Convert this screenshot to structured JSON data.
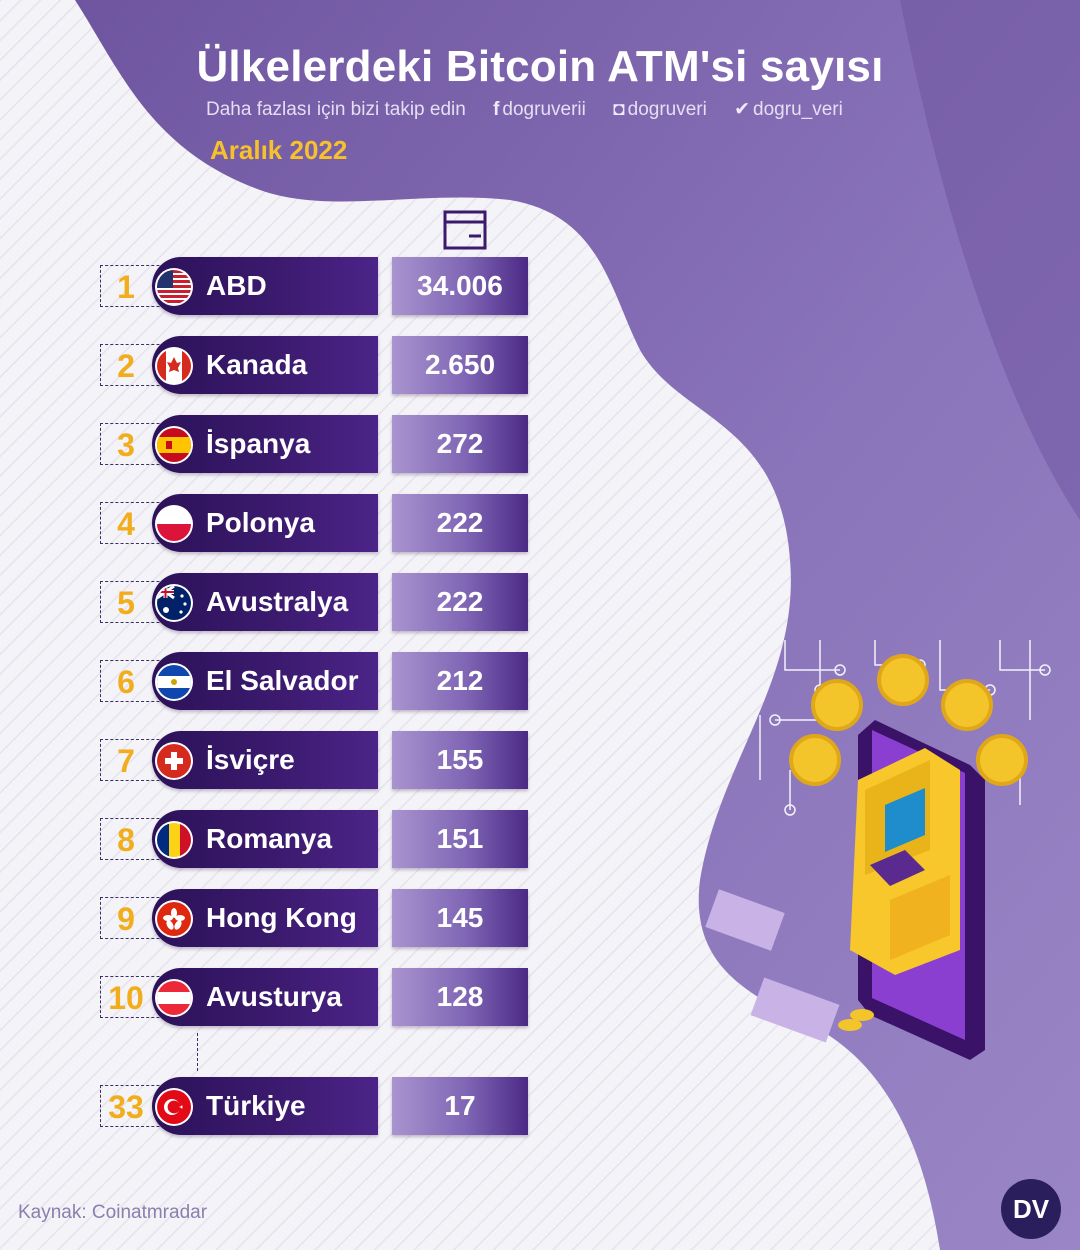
{
  "header": {
    "title": "Ülkelerdeki Bitcoin ATM'si sayısı",
    "follow_text": "Daha fazlası için bizi takip edin",
    "facebook": "dogruverii",
    "instagram": "dogruveri",
    "twitter": "dogru_veri",
    "date": "Aralık 2022"
  },
  "icons": {
    "facebook": "facebook-icon",
    "instagram": "instagram-icon",
    "twitter": "twitter-icon",
    "column": "atm-icon",
    "logo": "dv-logo"
  },
  "colors": {
    "background_purple": "#7c64aa",
    "name_bar": "#3b1a6e",
    "rank": "#f1ad1c",
    "date": "#f6c12a"
  },
  "chart_data": {
    "type": "table",
    "title": "Ülkelerdeki Bitcoin ATM'si sayısı",
    "subtitle": "Aralık 2022",
    "rows": [
      {
        "rank": "1",
        "country": "ABD",
        "value": "34.006",
        "number": 34006,
        "flag": "us"
      },
      {
        "rank": "2",
        "country": "Kanada",
        "value": "2.650",
        "number": 2650,
        "flag": "ca"
      },
      {
        "rank": "3",
        "country": "İspanya",
        "value": "272",
        "number": 272,
        "flag": "es"
      },
      {
        "rank": "4",
        "country": "Polonya",
        "value": "222",
        "number": 222,
        "flag": "pl"
      },
      {
        "rank": "5",
        "country": "Avustralya",
        "value": "222",
        "number": 222,
        "flag": "au"
      },
      {
        "rank": "6",
        "country": "El Salvador",
        "value": "212",
        "number": 212,
        "flag": "sv"
      },
      {
        "rank": "7",
        "country": "İsviçre",
        "value": "155",
        "number": 155,
        "flag": "ch"
      },
      {
        "rank": "8",
        "country": "Romanya",
        "value": "151",
        "number": 151,
        "flag": "ro"
      },
      {
        "rank": "9",
        "country": "Hong Kong",
        "value": "145",
        "number": 145,
        "flag": "hk"
      },
      {
        "rank": "10",
        "country": "Avusturya",
        "value": "128",
        "number": 128,
        "flag": "at"
      },
      {
        "rank": "33",
        "country": "Türkiye",
        "value": "17",
        "number": 17,
        "flag": "tr"
      }
    ]
  },
  "footer": {
    "source": "Kaynak: Coinatmradar",
    "logo": "DV"
  }
}
